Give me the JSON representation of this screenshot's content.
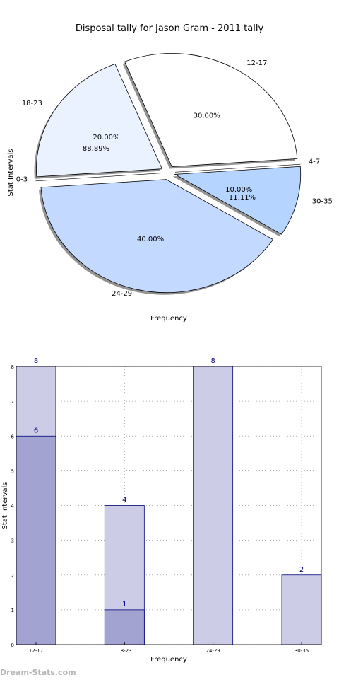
{
  "watermark": "Dream-Stats.com",
  "chart_data": [
    {
      "type": "pie",
      "title": "Disposal tally for Jason Gram - 2011 tally",
      "xlabel": "Frequency",
      "ylabel": "Stat Intervals",
      "series": [
        {
          "slices": [
            {
              "label": "12-17",
              "value": 30.0,
              "pct": "30.00%",
              "color": "#ffffff"
            },
            {
              "label": "4-7",
              "value": 0.0,
              "pct": "",
              "color": "#c4c4c4"
            },
            {
              "label": "30-35",
              "value": 10.0,
              "pct": "10.00%",
              "color": "#b5d4ff"
            },
            {
              "label": "24-29",
              "value": 40.0,
              "pct": "40.00%",
              "color": "#c4d9ff"
            },
            {
              "label": "0-3",
              "value": 0.0,
              "pct": "",
              "color": "#dde8ff"
            },
            {
              "label": "18-23",
              "value": 20.0,
              "pct": "20.00%",
              "color": "#eaf1ff"
            }
          ]
        },
        {
          "slices": [
            {
              "label": "0-3",
              "value": 88.89,
              "pct": "88.89%"
            },
            {
              "label": "4-7",
              "value": 11.11,
              "pct": "11.11%"
            }
          ]
        }
      ]
    },
    {
      "type": "bar",
      "xlabel": "Frequency",
      "ylabel": "Stat Intervals",
      "categories": [
        "12-17",
        "18-23",
        "24-29",
        "30-35"
      ],
      "ylim": [
        0,
        8
      ],
      "yticks": [
        0,
        1,
        2,
        3,
        4,
        5,
        6,
        7,
        8
      ],
      "grid": true,
      "series": [
        {
          "values": [
            8,
            4,
            8,
            2
          ],
          "color": "#cccce6"
        },
        {
          "values": [
            6,
            1,
            0,
            0
          ],
          "color": "#a3a3d1"
        }
      ],
      "bar_edge_color": "#00007f",
      "value_label_color": "#000080"
    }
  ]
}
